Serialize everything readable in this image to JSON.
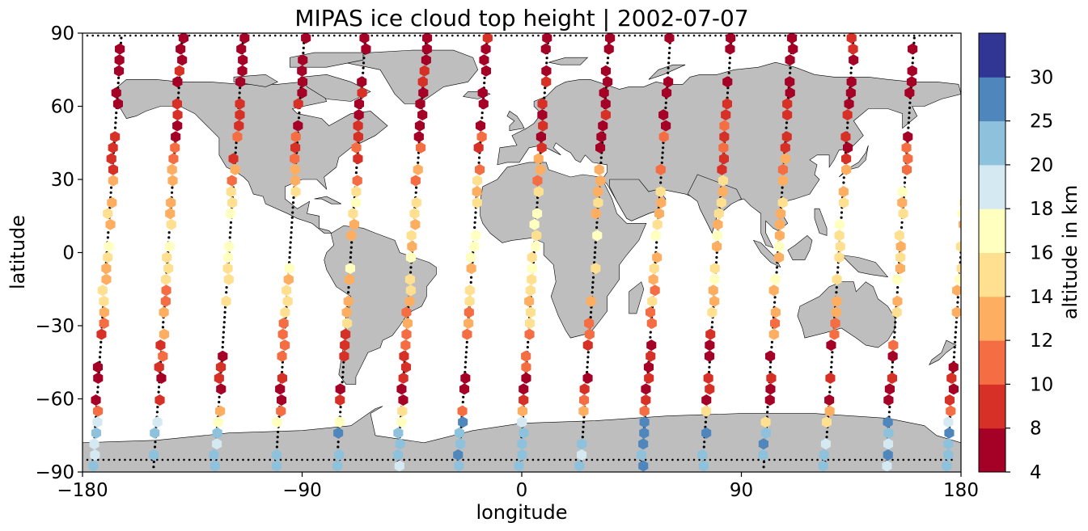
{
  "chart_data": {
    "type": "scatter",
    "title": "MIPAS ice cloud top height | 2002-07-07",
    "xlabel": "longitude",
    "ylabel": "latitude",
    "xlim": [
      -180,
      180
    ],
    "ylim": [
      -90,
      90
    ],
    "xticks": [
      -180,
      -90,
      0,
      90,
      180
    ],
    "yticks": [
      -90,
      -60,
      -30,
      0,
      30,
      60,
      90
    ],
    "grid": false,
    "colorbar": {
      "label": "altitude in km",
      "bounds": [
        4,
        8,
        10,
        12,
        14,
        16,
        18,
        20,
        25,
        30
      ],
      "colors": [
        "#a50026",
        "#d73027",
        "#f46d43",
        "#fdae61",
        "#fee090",
        "#ffffbf",
        "#d4e9f2",
        "#8ec1dc",
        "#4f86bb",
        "#313695"
      ]
    },
    "background": {
      "land_color": "#bebebe",
      "ocean_color": "#ffffff",
      "track_color": "#000000"
    },
    "orbits": [
      {
        "lon_north": -164,
        "lon_south": -176
      },
      {
        "lon_north": -139,
        "lon_south": -151
      },
      {
        "lon_north": -114,
        "lon_south": -126
      },
      {
        "lon_north": -89,
        "lon_south": -101
      },
      {
        "lon_north": -64,
        "lon_south": -76
      },
      {
        "lon_north": -39,
        "lon_south": -51
      },
      {
        "lon_north": -14,
        "lon_south": -26
      },
      {
        "lon_north": 11,
        "lon_south": -1
      },
      {
        "lon_north": 36,
        "lon_south": 24
      },
      {
        "lon_north": 61,
        "lon_south": 49
      },
      {
        "lon_north": 86,
        "lon_south": 74
      },
      {
        "lon_north": 111,
        "lon_south": 99
      },
      {
        "lon_north": 136,
        "lon_south": 124
      },
      {
        "lon_north": 161,
        "lon_south": 149
      },
      {
        "lon_north": 186,
        "lon_south": 174
      }
    ],
    "orbit_lat_step_deg": 4.5,
    "altitude_profile_km": [
      {
        "lat": 90,
        "alt": 6
      },
      {
        "lat": 60,
        "alt": 7
      },
      {
        "lat": 40,
        "alt": 10
      },
      {
        "lat": 25,
        "alt": 14
      },
      {
        "lat": 0,
        "alt": 15.5
      },
      {
        "lat": -20,
        "alt": 14
      },
      {
        "lat": -40,
        "alt": 9
      },
      {
        "lat": -60,
        "alt": 7
      },
      {
        "lat": -72,
        "alt": 20
      },
      {
        "lat": -90,
        "alt": 22
      }
    ],
    "polar_ring_lat": [
      89,
      -85
    ]
  }
}
